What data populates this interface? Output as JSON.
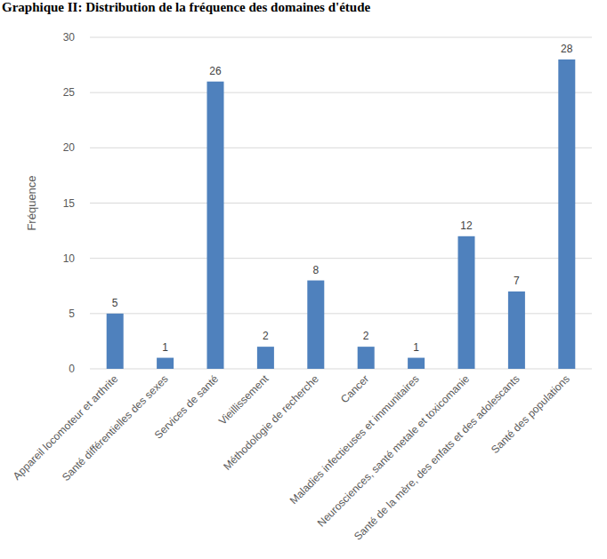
{
  "chart_data": {
    "type": "bar",
    "title": "Graphique II: Distribution de la fréquence des domaines d'étude",
    "y_label": "Fréquence",
    "categories": [
      "Appareil locomoteur et arthrite",
      "Santé différentielles des sexes",
      "Services de santé",
      "Vieillissement",
      "Méthodologie de recherche",
      "Cancer",
      "Maladies infectieuses et immunitaires",
      "Neurosciences, santé metale et toxicomanie",
      "Santé de la mère, des enfats et des adolescants",
      "Santé des populations"
    ],
    "values": [
      5,
      1,
      26,
      2,
      8,
      2,
      1,
      12,
      7,
      28
    ],
    "color": "#4f81bd",
    "ylim": [
      0,
      30
    ],
    "yticks": [
      0,
      5,
      10,
      15,
      20,
      25,
      30
    ],
    "grid": true,
    "data_labels": true
  }
}
